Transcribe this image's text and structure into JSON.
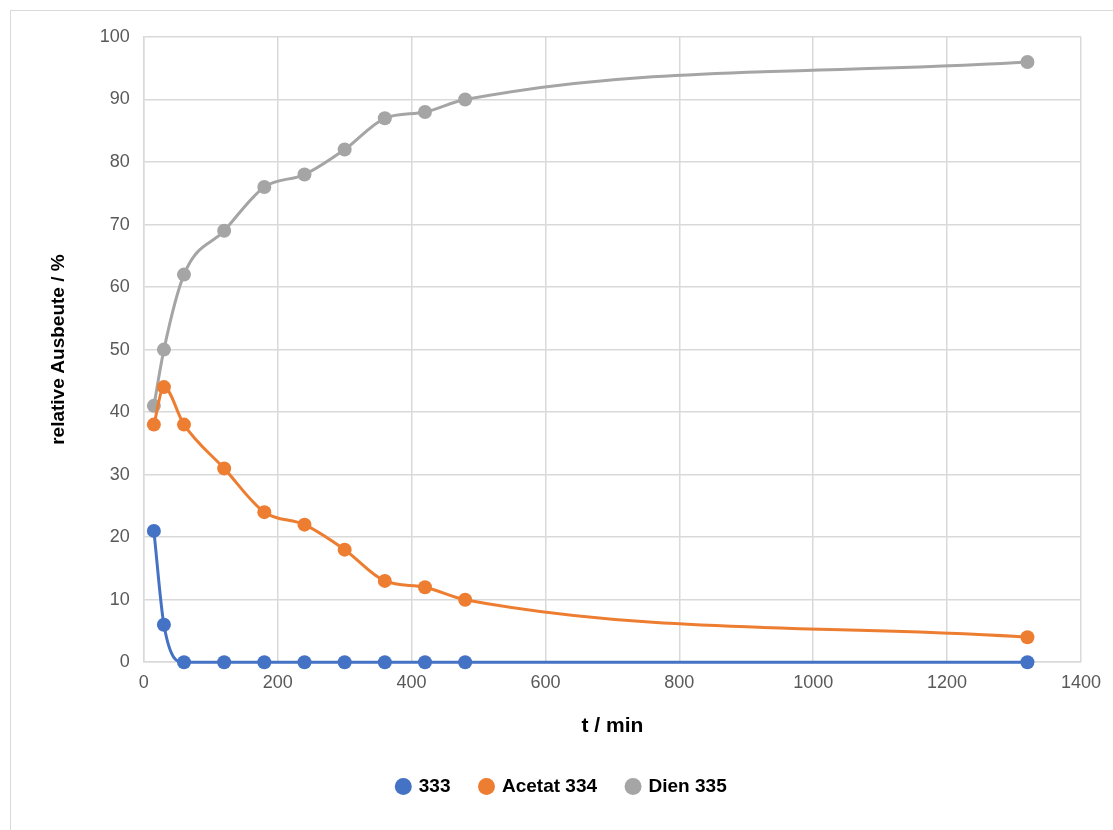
{
  "chart_data": {
    "type": "line",
    "xlabel": "t / min",
    "ylabel": "relative Ausbeute / %",
    "x": [
      15,
      30,
      60,
      120,
      180,
      240,
      300,
      360,
      420,
      480,
      1320
    ],
    "series": [
      {
        "name": "333",
        "color": "#4472c4",
        "values": [
          21,
          6,
          0,
          0,
          0,
          0,
          0,
          0,
          0,
          0,
          0
        ]
      },
      {
        "name": "Acetat 334",
        "color": "#ed7d31",
        "values": [
          38,
          44,
          38,
          31,
          24,
          22,
          18,
          13,
          12,
          10,
          4
        ]
      },
      {
        "name": "Dien 335",
        "color": "#a5a5a5",
        "values": [
          41,
          50,
          62,
          69,
          76,
          78,
          82,
          87,
          88,
          90,
          96
        ]
      }
    ],
    "xlim": [
      0,
      1400
    ],
    "xticks": [
      0,
      200,
      400,
      600,
      800,
      1000,
      1200,
      1400
    ],
    "ylim": [
      0,
      100
    ],
    "yticks": [
      0,
      10,
      20,
      30,
      40,
      50,
      60,
      70,
      80,
      90,
      100
    ],
    "grid": true,
    "legend": "bottom",
    "marker": "circle",
    "line_style": "solid"
  }
}
